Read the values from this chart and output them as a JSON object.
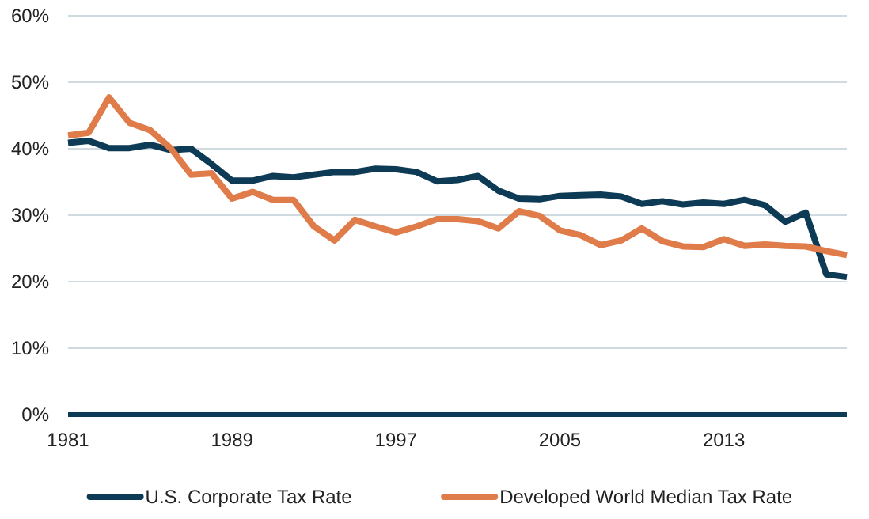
{
  "chart_data": {
    "type": "line",
    "x": [
      1981,
      1982,
      1983,
      1984,
      1985,
      1986,
      1987,
      1988,
      1989,
      1990,
      1991,
      1992,
      1993,
      1994,
      1995,
      1996,
      1997,
      1998,
      1999,
      2000,
      2001,
      2002,
      2003,
      2004,
      2005,
      2006,
      2007,
      2008,
      2009,
      2010,
      2011,
      2012,
      2013,
      2014,
      2015,
      2016,
      2017,
      2018,
      2019
    ],
    "series": [
      {
        "name": "U.S. Corporate Tax Rate",
        "color": "#0d3b55",
        "values": [
          40.9,
          41.2,
          40.1,
          40.1,
          40.6,
          39.8,
          40.0,
          37.7,
          35.2,
          35.2,
          35.9,
          35.7,
          36.1,
          36.5,
          36.5,
          37.0,
          36.9,
          36.5,
          35.1,
          35.3,
          35.9,
          33.7,
          32.5,
          32.4,
          32.9,
          33.0,
          33.1,
          32.8,
          31.7,
          32.1,
          31.6,
          31.9,
          31.7,
          32.3,
          31.5,
          29.0,
          30.4,
          21.1,
          20.7
        ]
      },
      {
        "name": "Developed World Median Tax Rate",
        "color": "#e07b4a",
        "values": [
          42.0,
          42.4,
          47.7,
          43.9,
          42.8,
          40.1,
          36.1,
          36.3,
          32.5,
          33.5,
          32.3,
          32.3,
          28.3,
          26.2,
          29.3,
          28.3,
          27.4,
          28.3,
          29.4,
          29.4,
          29.1,
          28.0,
          30.6,
          29.9,
          27.7,
          27.0,
          25.5,
          26.2,
          28.0,
          26.1,
          25.3,
          25.2,
          26.4,
          25.4,
          25.6,
          25.4,
          25.3,
          24.6,
          24.0
        ]
      }
    ],
    "xlim": [
      1981,
      2019
    ],
    "xticks": [
      1981,
      1989,
      1997,
      2005,
      2013
    ],
    "ylim": [
      0,
      60
    ],
    "yticks": [
      {
        "value": 0,
        "label": "0%"
      },
      {
        "value": 10,
        "label": "10%"
      },
      {
        "value": 20,
        "label": "20%"
      },
      {
        "value": 30,
        "label": "30%"
      },
      {
        "value": 40,
        "label": "40%"
      },
      {
        "value": 50,
        "label": "50%"
      },
      {
        "value": 60,
        "label": "60%"
      }
    ],
    "grid": "y",
    "legend": "bottom",
    "line_style": "solid",
    "marker": "none"
  }
}
